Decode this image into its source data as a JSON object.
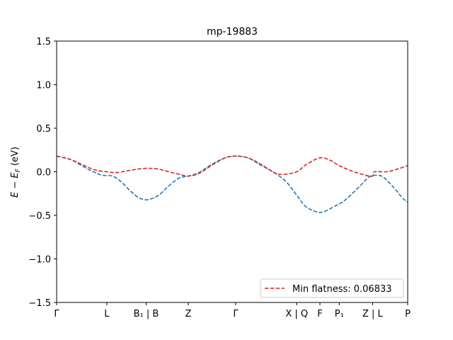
{
  "chart_data": {
    "type": "line",
    "title": "mp-19883",
    "ylabel": "E − E_F (eV)",
    "xlabel": "",
    "xlim": [
      0,
      10
    ],
    "ylim": [
      -1.5,
      1.5
    ],
    "yticks": [
      -1.5,
      -1.0,
      -0.5,
      0.0,
      0.5,
      1.0,
      1.5
    ],
    "ytick_labels": [
      "−1.5",
      "−1.0",
      "−0.5",
      "0.0",
      "0.5",
      "1.0",
      "1.5"
    ],
    "kpoint_labels": [
      {
        "x": 0.0,
        "label": "Γ"
      },
      {
        "x": 1.43,
        "label": "L"
      },
      {
        "x": 2.55,
        "label": "B₁ | B"
      },
      {
        "x": 3.75,
        "label": "Z"
      },
      {
        "x": 5.1,
        "label": "Γ"
      },
      {
        "x": 6.84,
        "label": "X | Q"
      },
      {
        "x": 7.5,
        "label": "F"
      },
      {
        "x": 8.05,
        "label": "P₁"
      },
      {
        "x": 9.0,
        "label": "Z | L"
      },
      {
        "x": 10.0,
        "label": "P"
      }
    ],
    "legend": {
      "label": "Min flatness: 0.06833",
      "placement": "lower-right",
      "color": "#d62728"
    },
    "series": [
      {
        "color": "#1f77b4",
        "style": "dashed",
        "points": [
          [
            0,
            0.18
          ],
          [
            0.4,
            0.14
          ],
          [
            0.8,
            0.05
          ],
          [
            1.1,
            -0.01
          ],
          [
            1.3,
            -0.04
          ],
          [
            1.6,
            -0.05
          ],
          [
            1.85,
            -0.12
          ],
          [
            2.1,
            -0.22
          ],
          [
            2.35,
            -0.3
          ],
          [
            2.6,
            -0.32
          ],
          [
            2.9,
            -0.27
          ],
          [
            3.2,
            -0.16
          ],
          [
            3.5,
            -0.07
          ],
          [
            3.75,
            -0.05
          ],
          [
            4.05,
            -0.01
          ],
          [
            4.4,
            0.08
          ],
          [
            4.8,
            0.16
          ],
          [
            5.1,
            0.18
          ],
          [
            5.45,
            0.16
          ],
          [
            5.8,
            0.08
          ],
          [
            6.2,
            -0.01
          ],
          [
            6.55,
            -0.12
          ],
          [
            6.84,
            -0.27
          ],
          [
            7.1,
            -0.4
          ],
          [
            7.4,
            -0.46
          ],
          [
            7.6,
            -0.46
          ],
          [
            7.9,
            -0.4
          ],
          [
            8.2,
            -0.33
          ],
          [
            8.6,
            -0.18
          ],
          [
            8.9,
            -0.06
          ],
          [
            9.1,
            -0.04
          ],
          [
            9.3,
            -0.06
          ],
          [
            9.6,
            -0.18
          ],
          [
            9.85,
            -0.3
          ],
          [
            10,
            -0.35
          ]
        ]
      },
      {
        "color": "#d62728",
        "style": "dashed",
        "points": [
          [
            0,
            0.18
          ],
          [
            0.4,
            0.14
          ],
          [
            0.8,
            0.07
          ],
          [
            1.1,
            0.02
          ],
          [
            1.43,
            0.0
          ],
          [
            1.7,
            -0.01
          ],
          [
            2.0,
            0.01
          ],
          [
            2.3,
            0.03
          ],
          [
            2.6,
            0.04
          ],
          [
            2.9,
            0.03
          ],
          [
            3.3,
            -0.01
          ],
          [
            3.6,
            -0.04
          ],
          [
            3.75,
            -0.05
          ],
          [
            4.05,
            -0.02
          ],
          [
            4.4,
            0.07
          ],
          [
            4.8,
            0.16
          ],
          [
            5.1,
            0.18
          ],
          [
            5.45,
            0.16
          ],
          [
            5.8,
            0.09
          ],
          [
            6.2,
            -0.01
          ],
          [
            6.45,
            -0.03
          ],
          [
            6.84,
            0.0
          ],
          [
            7.1,
            0.08
          ],
          [
            7.5,
            0.16
          ],
          [
            7.8,
            0.13
          ],
          [
            8.05,
            0.07
          ],
          [
            8.4,
            0.01
          ],
          [
            8.8,
            -0.04
          ],
          [
            9.0,
            -0.05
          ],
          [
            9.05,
            0.0
          ],
          [
            9.4,
            0.0
          ],
          [
            9.7,
            0.03
          ],
          [
            10,
            0.07
          ]
        ]
      }
    ]
  }
}
